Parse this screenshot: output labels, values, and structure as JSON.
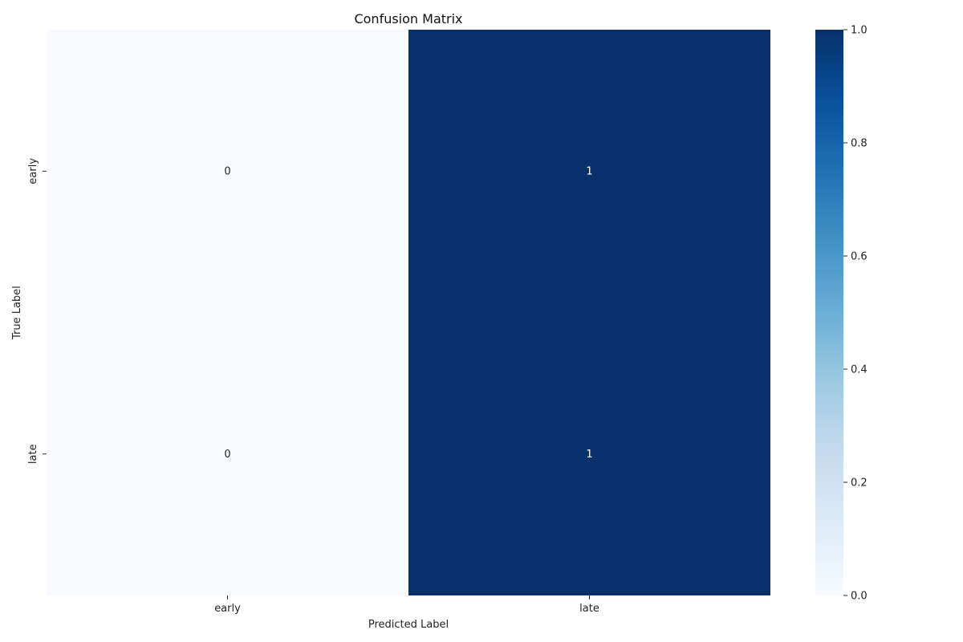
{
  "chart_data": {
    "type": "heatmap",
    "title": "Confusion Matrix",
    "xlabel": "Predicted Label",
    "ylabel": "True Label",
    "x_categories": [
      "early",
      "late"
    ],
    "y_categories": [
      "early",
      "late"
    ],
    "values": [
      [
        0,
        1
      ],
      [
        0,
        1
      ]
    ],
    "cell_labels": [
      [
        "0",
        "1"
      ],
      [
        "0",
        "1"
      ]
    ],
    "colorbar": {
      "range": [
        0.0,
        1.0
      ],
      "ticks": [
        0.0,
        0.2,
        0.4,
        0.6,
        0.8,
        1.0
      ],
      "tick_labels": [
        "0.0",
        "0.2",
        "0.4",
        "0.6",
        "0.8",
        "1.0"
      ]
    },
    "colormap": [
      "#f7fbff",
      "#deebf7",
      "#c6dbef",
      "#9ecae1",
      "#6baed6",
      "#4292c6",
      "#2171b5",
      "#08519c",
      "#08306b"
    ],
    "grid": false,
    "legend": "colorbar-right"
  }
}
